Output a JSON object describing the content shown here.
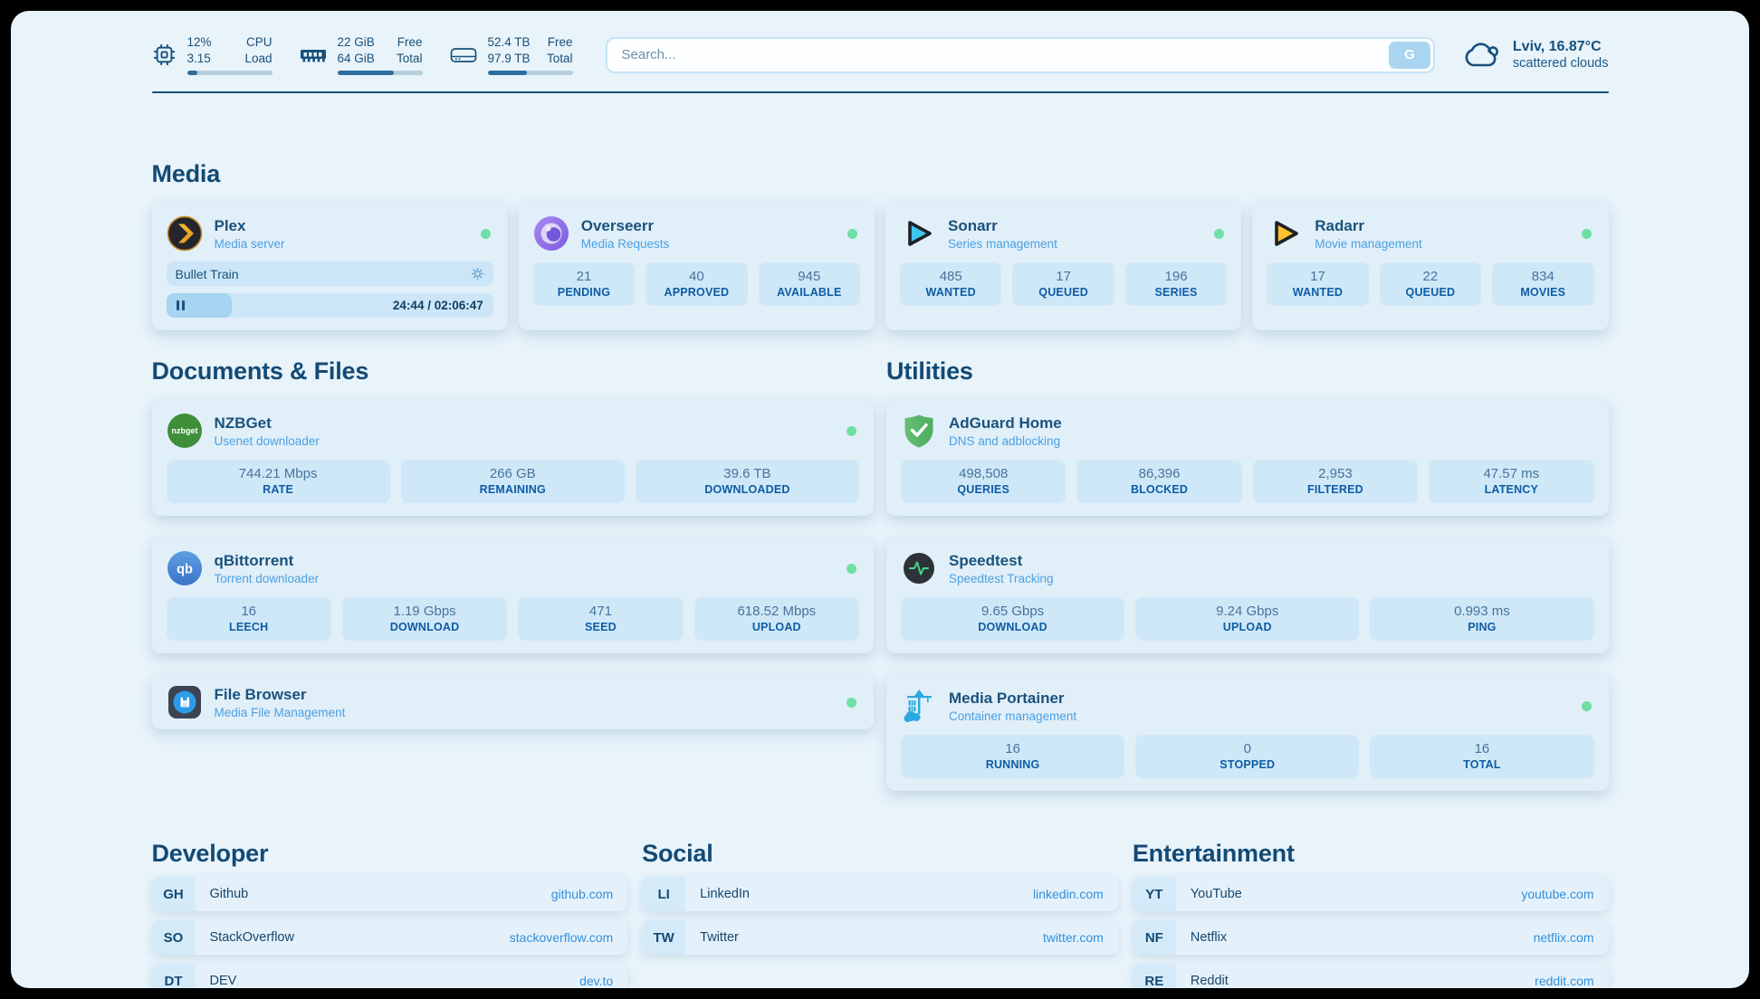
{
  "header": {
    "cpu": {
      "value_top": "12%",
      "value_bottom": "3.15",
      "label_top": "CPU",
      "label_bottom": "Load",
      "progress_pct": 12
    },
    "ram": {
      "value_top": "22 GiB",
      "value_bottom": "64 GiB",
      "label_top": "Free",
      "label_bottom": "Total",
      "progress_pct": 66
    },
    "disk": {
      "value_top": "52.4 TB",
      "value_bottom": "97.9 TB",
      "label_top": "Free",
      "label_bottom": "Total",
      "progress_pct": 46
    },
    "search": {
      "placeholder": "Search...",
      "button_label": "G"
    },
    "weather": {
      "location": "Lviv, 16.87°C",
      "condition": "scattered clouds"
    }
  },
  "sections": {
    "media": {
      "title": "Media"
    },
    "documents": {
      "title": "Documents & Files"
    },
    "utilities": {
      "title": "Utilities"
    },
    "developer": {
      "title": "Developer"
    },
    "social": {
      "title": "Social"
    },
    "entertainment": {
      "title": "Entertainment"
    }
  },
  "services": {
    "plex": {
      "name": "Plex",
      "description": "Media server",
      "now_playing": "Bullet Train",
      "time_display": "24:44 / 02:06:47",
      "progress_pct": 20
    },
    "overseerr": {
      "name": "Overseerr",
      "description": "Media Requests",
      "stats": [
        {
          "value": "21",
          "label": "PENDING"
        },
        {
          "value": "40",
          "label": "APPROVED"
        },
        {
          "value": "945",
          "label": "AVAILABLE"
        }
      ]
    },
    "sonarr": {
      "name": "Sonarr",
      "description": "Series management",
      "stats": [
        {
          "value": "485",
          "label": "WANTED"
        },
        {
          "value": "17",
          "label": "QUEUED"
        },
        {
          "value": "196",
          "label": "SERIES"
        }
      ]
    },
    "radarr": {
      "name": "Radarr",
      "description": "Movie management",
      "stats": [
        {
          "value": "17",
          "label": "WANTED"
        },
        {
          "value": "22",
          "label": "QUEUED"
        },
        {
          "value": "834",
          "label": "MOVIES"
        }
      ]
    },
    "nzbget": {
      "name": "NZBGet",
      "description": "Usenet downloader",
      "stats": [
        {
          "value": "744.21 Mbps",
          "label": "RATE"
        },
        {
          "value": "266 GB",
          "label": "REMAINING"
        },
        {
          "value": "39.6 TB",
          "label": "DOWNLOADED"
        }
      ]
    },
    "qbittorrent": {
      "name": "qBittorrent",
      "description": "Torrent downloader",
      "stats": [
        {
          "value": "16",
          "label": "LEECH"
        },
        {
          "value": "1.19 Gbps",
          "label": "DOWNLOAD"
        },
        {
          "value": "471",
          "label": "SEED"
        },
        {
          "value": "618.52 Mbps",
          "label": "UPLOAD"
        }
      ]
    },
    "filebrowser": {
      "name": "File Browser",
      "description": "Media File Management"
    },
    "adguard": {
      "name": "AdGuard Home",
      "description": "DNS and adblocking",
      "stats": [
        {
          "value": "498,508",
          "label": "QUERIES"
        },
        {
          "value": "86,396",
          "label": "BLOCKED"
        },
        {
          "value": "2,953",
          "label": "FILTERED"
        },
        {
          "value": "47.57 ms",
          "label": "LATENCY"
        }
      ]
    },
    "speedtest": {
      "name": "Speedtest",
      "description": "Speedtest Tracking",
      "stats": [
        {
          "value": "9.65 Gbps",
          "label": "DOWNLOAD"
        },
        {
          "value": "9.24 Gbps",
          "label": "UPLOAD"
        },
        {
          "value": "0.993 ms",
          "label": "PING"
        }
      ]
    },
    "portainer": {
      "name": "Media Portainer",
      "description": "Container management",
      "stats": [
        {
          "value": "16",
          "label": "RUNNING"
        },
        {
          "value": "0",
          "label": "STOPPED"
        },
        {
          "value": "16",
          "label": "TOTAL"
        }
      ]
    }
  },
  "bookmarks": {
    "developer": [
      {
        "abbr": "GH",
        "name": "Github",
        "url": "github.com"
      },
      {
        "abbr": "SO",
        "name": "StackOverflow",
        "url": "stackoverflow.com"
      },
      {
        "abbr": "DT",
        "name": "DEV",
        "url": "dev.to"
      }
    ],
    "social": [
      {
        "abbr": "LI",
        "name": "LinkedIn",
        "url": "linkedin.com"
      },
      {
        "abbr": "TW",
        "name": "Twitter",
        "url": "twitter.com"
      }
    ],
    "entertainment": [
      {
        "abbr": "YT",
        "name": "YouTube",
        "url": "youtube.com"
      },
      {
        "abbr": "NF",
        "name": "Netflix",
        "url": "netflix.com"
      },
      {
        "abbr": "RE",
        "name": "Reddit",
        "url": "reddit.com"
      }
    ]
  },
  "colors": {
    "status_online": "#6FE0A4",
    "accent": "#2AA9E1",
    "link": "#338FD8"
  }
}
